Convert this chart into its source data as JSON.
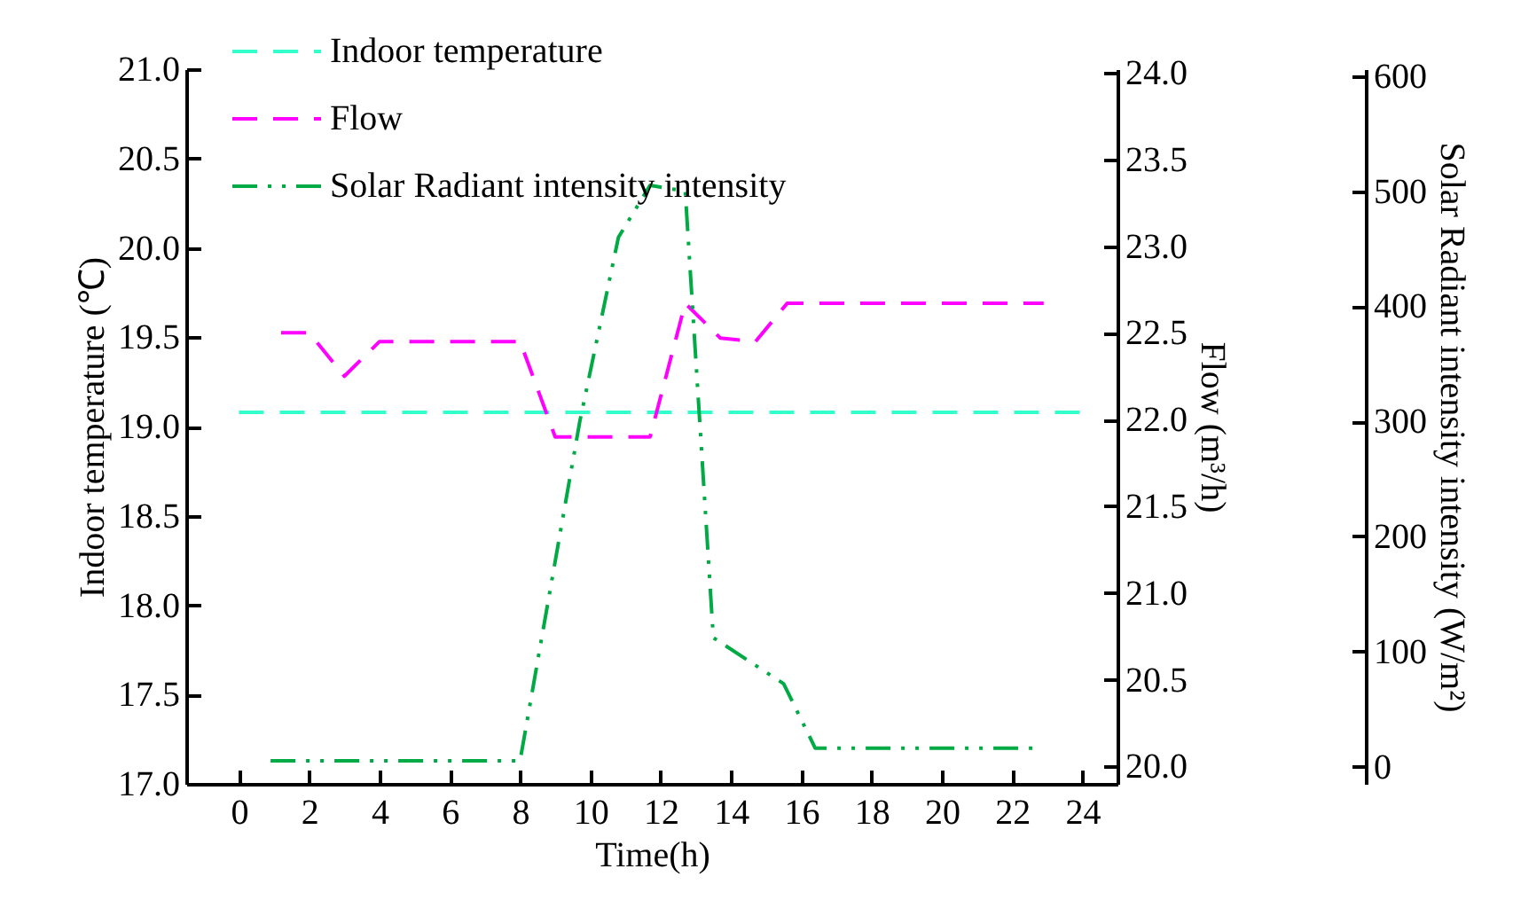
{
  "chart_data": {
    "type": "line",
    "xlabel": "Time(h)",
    "ylabel": "Indoor temperature (℃)",
    "y2label": "Flow (m³/h)",
    "y3label": "Solar Radiant intensity intensity (W/m²)",
    "xlim": [
      -1.5,
      25
    ],
    "xticks": [
      0,
      2,
      4,
      6,
      8,
      10,
      12,
      14,
      16,
      18,
      20,
      22,
      24
    ],
    "ylim": [
      17,
      21
    ],
    "yticks": [
      {
        "value": 17,
        "label": "17.0"
      },
      17.5,
      {
        "value": 18,
        "label": "18.0"
      },
      18.5,
      {
        "value": 19,
        "label": "19.0"
      },
      19.5,
      {
        "value": 20,
        "label": "20.0"
      },
      20.5,
      {
        "value": 21,
        "label": "21.0"
      }
    ],
    "y2lim": [
      19.9,
      24.02
    ],
    "y2ticks": [
      {
        "value": 20,
        "label": "20.0"
      },
      20.5,
      {
        "value": 21,
        "label": "21.0"
      },
      21.5,
      {
        "value": 22,
        "label": "22.0"
      },
      22.5,
      {
        "value": 23,
        "label": "23.0"
      },
      23.5,
      {
        "value": 24,
        "label": "24.0"
      }
    ],
    "y3lim": [
      -15,
      606
    ],
    "y3ticks": [
      0,
      100,
      200,
      300,
      400,
      500,
      600
    ],
    "grid": false,
    "legend": "top left",
    "marker": "none",
    "series": [
      {
        "name": "Indoor temperature",
        "color": "#33ffcc",
        "line_style": "dashed",
        "x": [
          0,
          24
        ],
        "values": [
          19.08,
          19.08
        ]
      },
      {
        "name": "Flow",
        "color": "#ff00ff",
        "line_style": "dashed",
        "axis": "y2",
        "x": [
          1.2,
          2,
          3,
          4,
          8,
          9,
          11.7,
          12.7,
          13.7,
          14.7,
          15.6,
          22.9
        ],
        "values": [
          22.5,
          22.5,
          22.25,
          22.45,
          22.45,
          21.9,
          21.9,
          22.67,
          22.47,
          22.45,
          22.67,
          22.67
        ]
      },
      {
        "name": "Solar Radiant intensity intensity",
        "color": "#00aa44",
        "line_style": "dashdot",
        "axis": "y3",
        "x": [
          0.9,
          8,
          9.7,
          10.8,
          11.7,
          12.7,
          13.5,
          15.5,
          16.4,
          22.7
        ],
        "values": [
          5,
          5,
          300,
          460,
          505,
          500,
          112,
          72,
          16,
          16
        ]
      }
    ]
  }
}
